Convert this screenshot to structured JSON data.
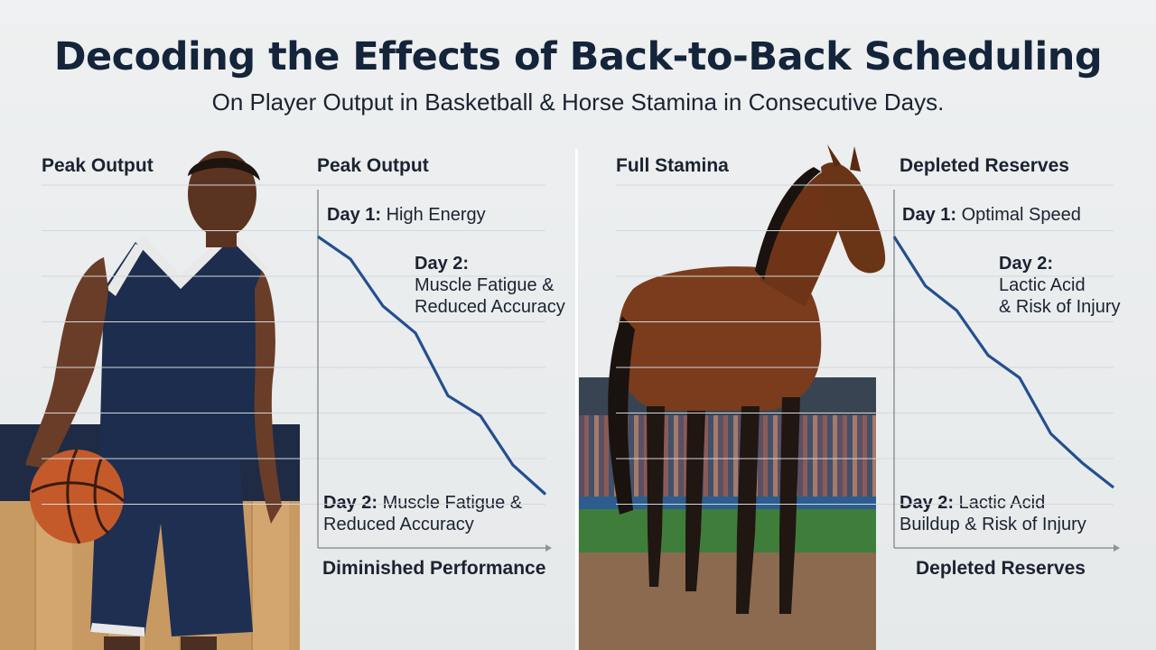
{
  "title": "Decoding the Effects of Back-to-Back Scheduling",
  "subtitle": "On Player Output in Basketball & Horse Stamina in Consecutive Days.",
  "colors": {
    "line": "#244f8f",
    "title": "#14243a",
    "grid": "#d4d8db"
  },
  "panels": {
    "basketball": {
      "photo_header": "Peak Output",
      "image_alt": "basketball player holding a ball",
      "chart_header": "Peak Output",
      "label_top_key": "Day 1:",
      "label_top_text": " High Energy",
      "label_mid_key": "Day 2:",
      "label_mid_line1": "Muscle Fatigue &",
      "label_mid_line2": "Reduced Accuracy",
      "label_bot_key": "Day 2:",
      "label_bot_text": " Muscle Fatigue &",
      "label_bot_line2": "Reduced Accuracy",
      "footer": "Diminished Performance"
    },
    "horse": {
      "photo_header": "Full Stamina",
      "image_alt": "bay horse standing on a dirt track",
      "chart_header": "Depleted Reserves",
      "label_top_key": "Day 1:",
      "label_top_text": " Optimal Speed",
      "label_mid_key": "Day 2:",
      "label_mid_line1": "Lactic Acid",
      "label_mid_line2": "& Risk of Injury",
      "label_bot_key": "Day 2:",
      "label_bot_text": " Lactic Acid",
      "label_bot_line2": "Buildup & Risk of Injury",
      "footer": "Depleted Reserves"
    }
  },
  "chart_data": [
    {
      "type": "line",
      "title": "Peak Output",
      "xlabel": "Diminished Performance",
      "ylabel": "",
      "grid": true,
      "x": [
        0,
        1,
        2,
        3,
        4,
        5,
        6,
        7
      ],
      "ylim": [
        0,
        8
      ],
      "series": [
        {
          "values": [
            6.95,
            6.45,
            5.4,
            4.8,
            3.4,
            2.95,
            1.85,
            1.2
          ]
        }
      ]
    },
    {
      "type": "line",
      "title": "Depleted Reserves",
      "xlabel": "Depleted Reserves",
      "ylabel": "",
      "grid": true,
      "x": [
        0,
        1,
        2,
        3,
        4,
        5,
        6,
        7
      ],
      "ylim": [
        0,
        8
      ],
      "series": [
        {
          "values": [
            6.95,
            5.85,
            5.3,
            4.3,
            3.8,
            2.55,
            1.9,
            1.35
          ]
        }
      ]
    }
  ]
}
